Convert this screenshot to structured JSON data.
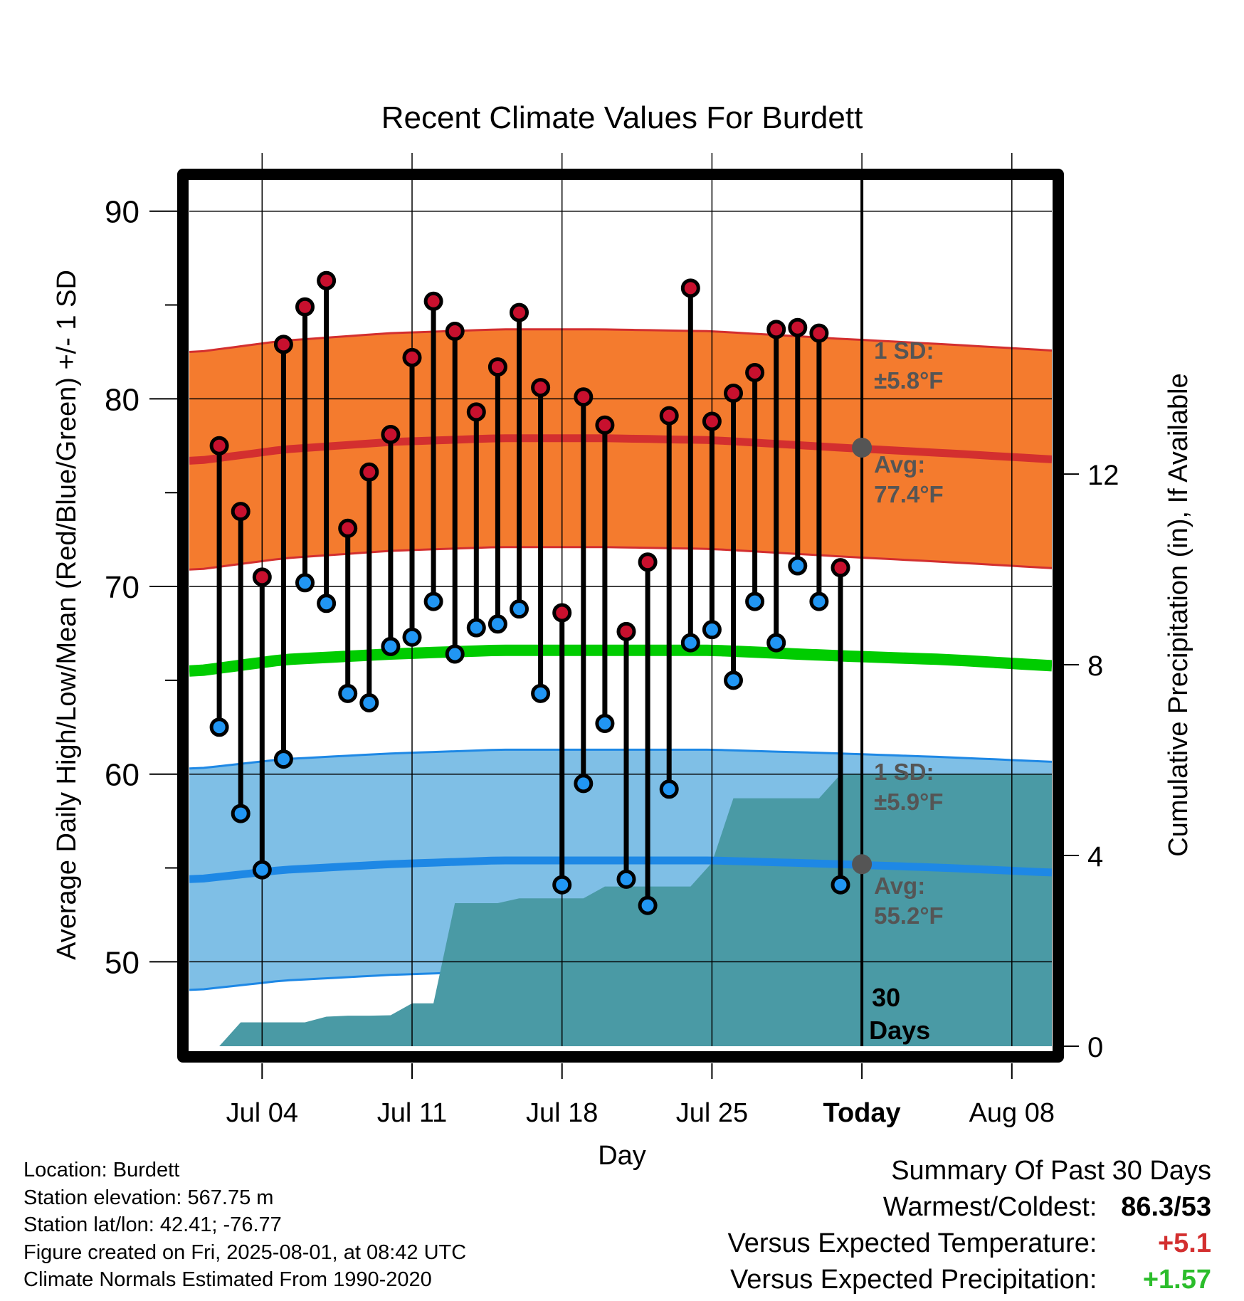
{
  "chart_data": {
    "type": "line",
    "title": "Recent Climate Values For Burdett",
    "xlabel": "Day",
    "ylabel": "Average Daily High/Low/Mean (Red/Blue/Green) +/- 1 SD",
    "y2label": "Cumulative Precipitation (in), If Available",
    "ylim": [
      45.5,
      92
    ],
    "y2lim": [
      0,
      18.3
    ],
    "y_ticks": [
      50,
      60,
      70,
      80,
      90
    ],
    "y2_ticks": [
      0,
      4,
      8,
      12
    ],
    "x_tick_labels": [
      "Jul 04",
      "Jul 11",
      "Jul 18",
      "Jul 25",
      "Today",
      "Aug 08"
    ],
    "grid": true,
    "days": [
      "2025-07-02",
      "2025-07-03",
      "2025-07-04",
      "2025-07-05",
      "2025-07-06",
      "2025-07-07",
      "2025-07-08",
      "2025-07-09",
      "2025-07-10",
      "2025-07-11",
      "2025-07-12",
      "2025-07-13",
      "2025-07-14",
      "2025-07-15",
      "2025-07-16",
      "2025-07-17",
      "2025-07-18",
      "2025-07-19",
      "2025-07-20",
      "2025-07-21",
      "2025-07-22",
      "2025-07-23",
      "2025-07-24",
      "2025-07-25",
      "2025-07-26",
      "2025-07-27",
      "2025-07-28",
      "2025-07-29",
      "2025-07-30",
      "2025-07-31"
    ],
    "series": [
      {
        "name": "High",
        "color": "#c8102e",
        "values": [
          77.5,
          74.0,
          70.5,
          82.9,
          84.9,
          86.3,
          73.1,
          76.1,
          78.1,
          82.2,
          85.2,
          83.6,
          79.3,
          81.7,
          84.6,
          80.6,
          68.6,
          80.1,
          78.6,
          67.6,
          71.3,
          79.1,
          85.9,
          78.8,
          80.3,
          81.4,
          83.7,
          83.8,
          83.5,
          71.0
        ]
      },
      {
        "name": "Low",
        "color": "#2196f3",
        "values": [
          62.5,
          57.9,
          54.9,
          60.8,
          70.2,
          69.1,
          64.3,
          63.8,
          66.8,
          67.3,
          69.2,
          66.4,
          67.8,
          68.0,
          68.8,
          64.3,
          54.1,
          59.5,
          62.7,
          54.4,
          53.0,
          59.2,
          67.0,
          67.7,
          65.0,
          69.2,
          67.0,
          71.1,
          69.2,
          54.1
        ]
      }
    ],
    "normals": {
      "dates": [
        "2025-07-01",
        "2025-07-05",
        "2025-07-10",
        "2025-07-15",
        "2025-07-20",
        "2025-07-25",
        "2025-07-31",
        "2025-08-05",
        "2025-08-11"
      ],
      "high_avg": [
        76.7,
        77.3,
        77.7,
        77.9,
        77.9,
        77.8,
        77.4,
        77.1,
        76.7
      ],
      "low_avg": [
        54.4,
        54.9,
        55.2,
        55.4,
        55.4,
        55.4,
        55.2,
        55.0,
        54.7
      ],
      "mean_avg": [
        65.5,
        66.1,
        66.4,
        66.6,
        66.6,
        66.6,
        66.3,
        66.1,
        65.7
      ],
      "high_sd": 5.8,
      "low_sd": 5.9,
      "high_sd_label": "1 SD:",
      "high_sd_value": "±5.8°F",
      "high_avg_label": "Avg:",
      "high_avg_value": "77.4°F",
      "low_sd_label": "1 SD:",
      "low_sd_value": "±5.9°F",
      "low_avg_label": "Avg:",
      "low_avg_value": "55.2°F"
    },
    "precipitation": {
      "color": "#4a9aa5",
      "days": [
        "2025-07-02",
        "2025-07-03",
        "2025-07-04",
        "2025-07-05",
        "2025-07-06",
        "2025-07-07",
        "2025-07-08",
        "2025-07-09",
        "2025-07-10",
        "2025-07-11",
        "2025-07-12",
        "2025-07-13",
        "2025-07-14",
        "2025-07-15",
        "2025-07-16",
        "2025-07-17",
        "2025-07-18",
        "2025-07-19",
        "2025-07-20",
        "2025-07-21",
        "2025-07-22",
        "2025-07-23",
        "2025-07-24",
        "2025-07-25",
        "2025-07-26",
        "2025-07-27",
        "2025-07-28",
        "2025-07-29",
        "2025-07-30",
        "2025-07-31"
      ],
      "values": [
        0.0,
        0.5,
        0.5,
        0.5,
        0.5,
        0.62,
        0.64,
        0.64,
        0.65,
        0.9,
        0.9,
        3.0,
        3.0,
        3.0,
        3.1,
        3.1,
        3.1,
        3.1,
        3.35,
        3.35,
        3.35,
        3.35,
        3.35,
        3.85,
        5.2,
        5.2,
        5.2,
        5.2,
        5.2,
        5.7
      ],
      "extended_to": "2025-08-11"
    },
    "today_label": "Today",
    "window_label": "30 Days"
  },
  "footer_left": {
    "location": "Location: Burdett",
    "elevation": "Station elevation: 567.75 m",
    "latlon": "Station lat/lon: 42.41; -76.77",
    "created": "Figure created on Fri, 2025-08-01, at 08:42 UTC",
    "normals": "Climate Normals Estimated From 1990-2020"
  },
  "summary": {
    "title": "Summary Of Past 30 Days",
    "warm_cold_label": "Warmest/Coldest:",
    "warm_cold_value": "86.3/53",
    "temp_label": "Versus Expected Temperature:",
    "temp_value": "+5.1",
    "temp_color": "#d32f2f",
    "precip_label": "Versus Expected Precipitation:",
    "precip_value": "+1.57",
    "precip_color": "#2bbd2b"
  }
}
